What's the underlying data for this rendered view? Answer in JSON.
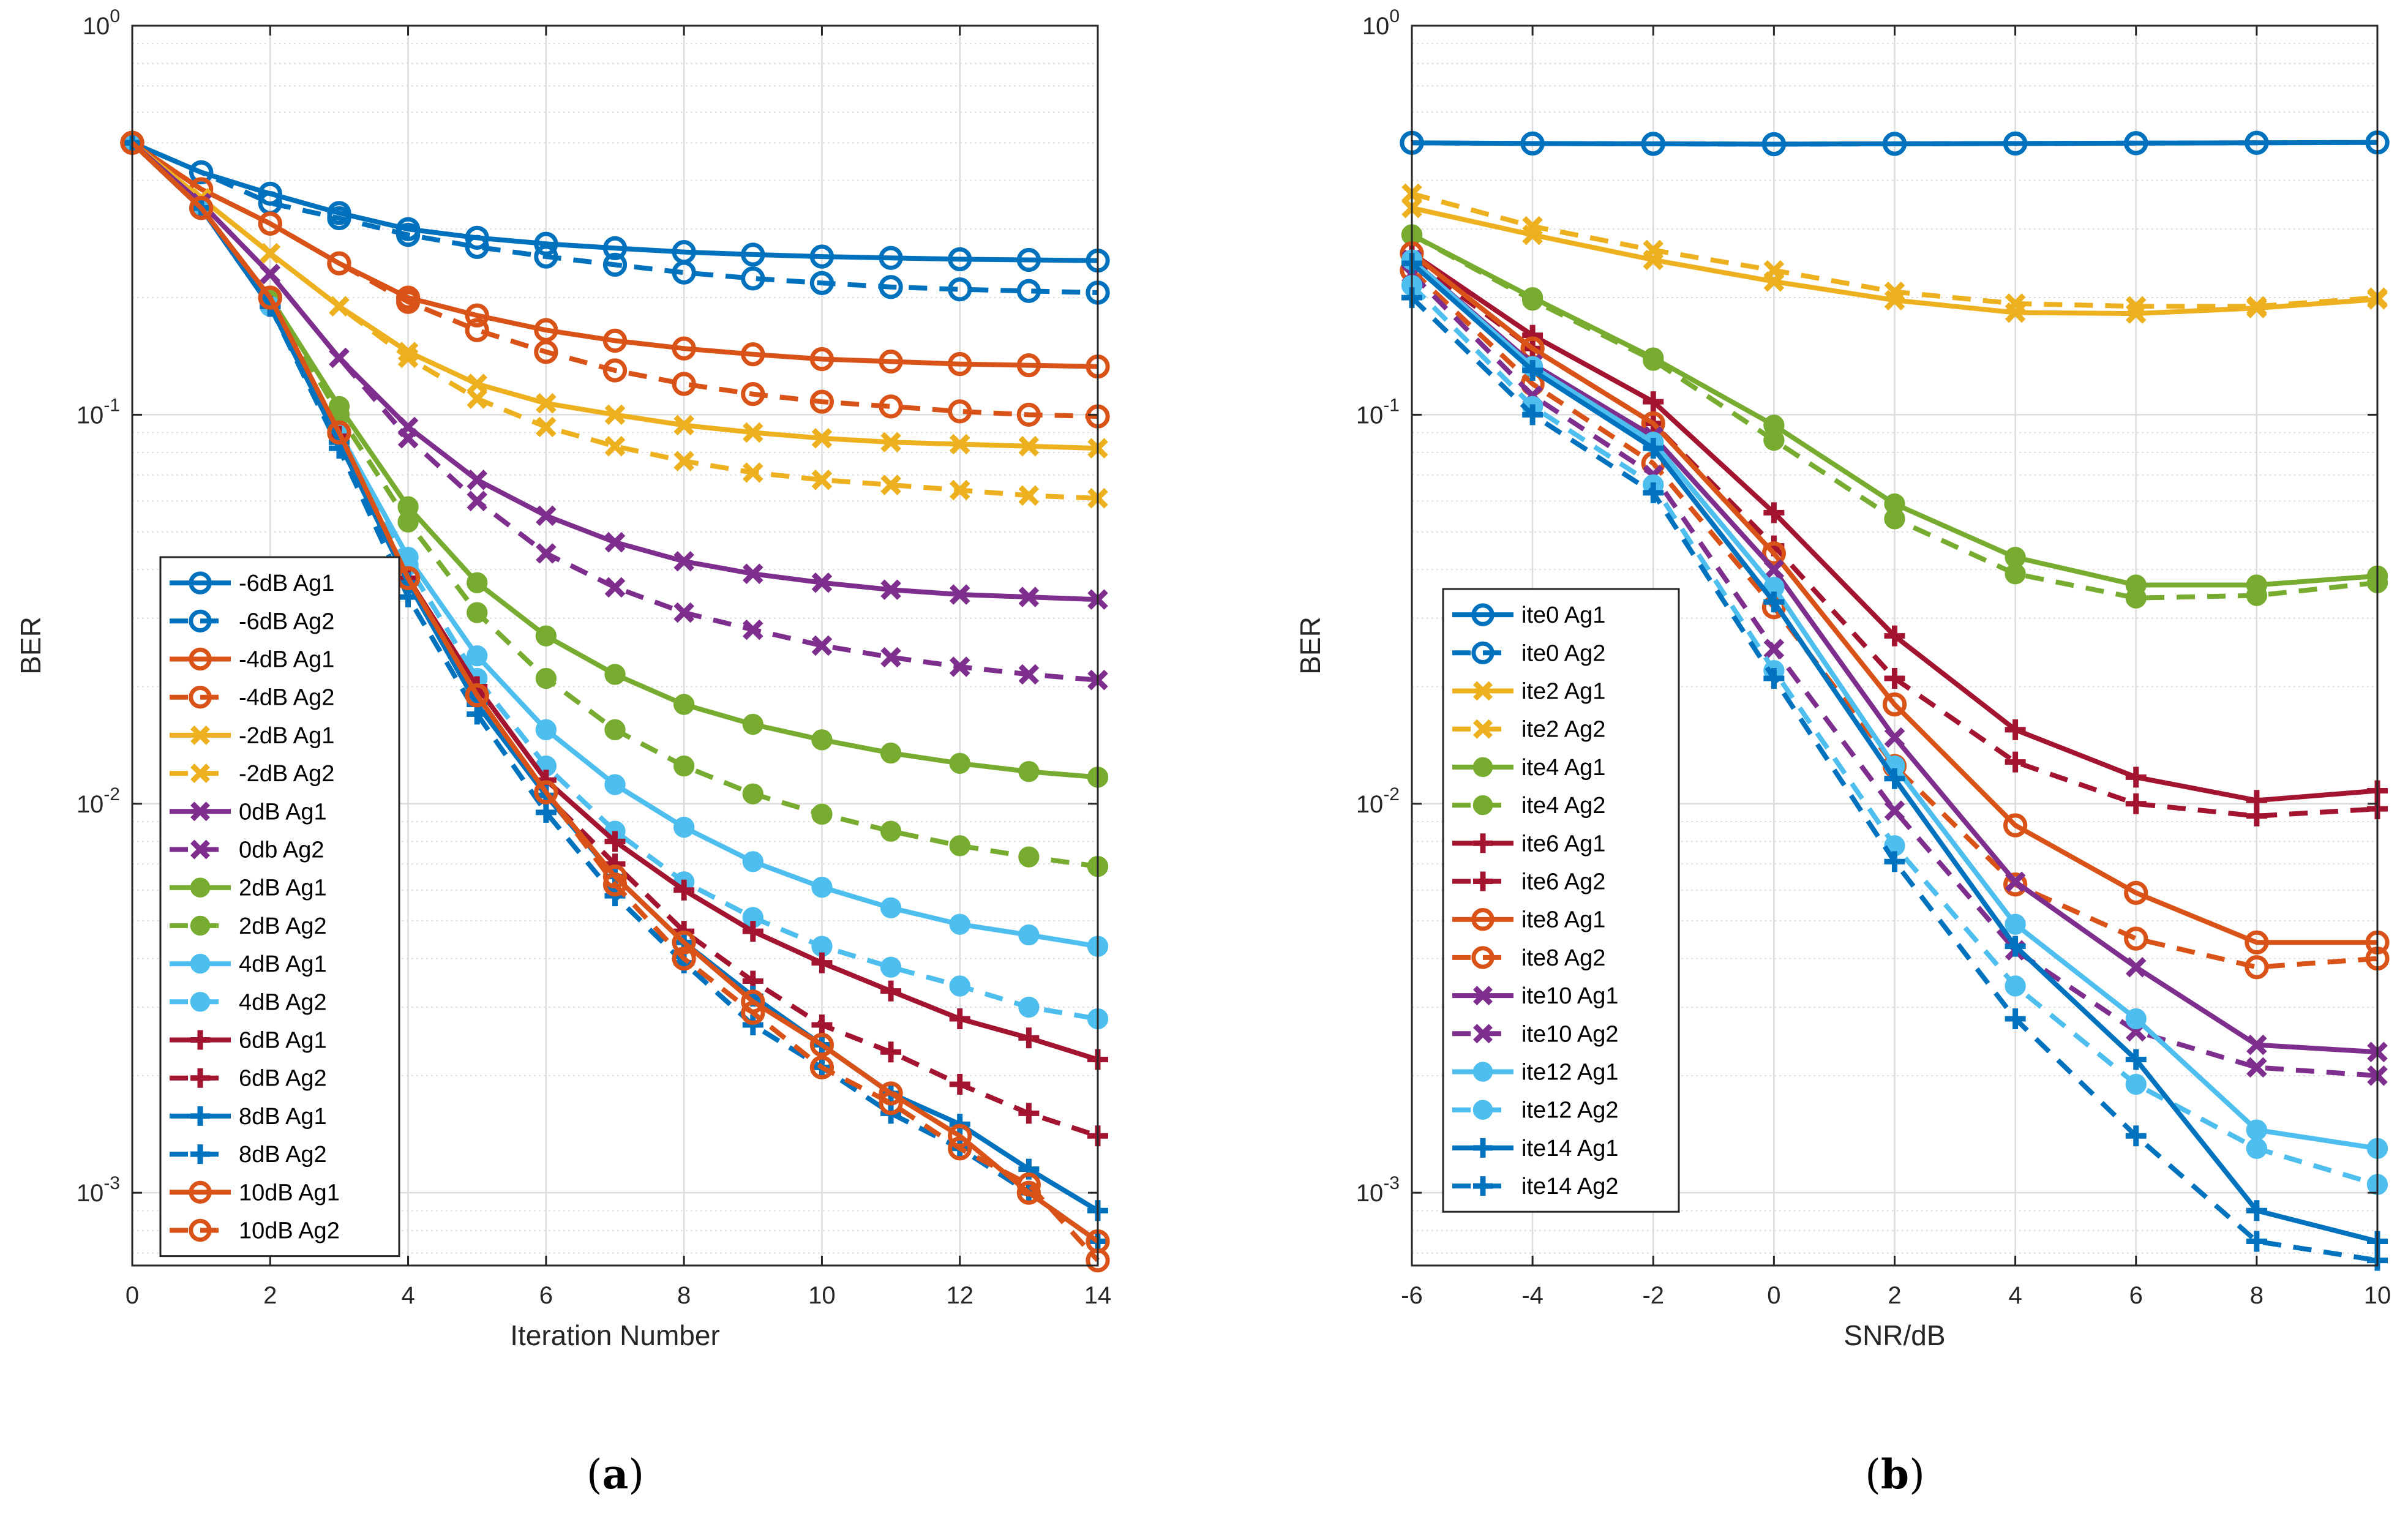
{
  "markers": {
    "0072BD": "o",
    "D95319": "o",
    "EDB120": "x",
    "7E2F8E": "x",
    "77AC30": "dot",
    "4DBEEE": "dot",
    "A2142F": "plus",
    "0072BE": "plus"
  },
  "chart_data": [
    {
      "type": "line",
      "caption": "(a)",
      "caption_letter": "a",
      "xlabel": "Iteration Number",
      "ylabel": "BER",
      "xlim": [
        0,
        14
      ],
      "ylim": [
        0.00065,
        1
      ],
      "yscale": "log",
      "grid": true,
      "minor_grid": true,
      "legend_position": "lower-left",
      "x_ticks": [
        0,
        2,
        4,
        6,
        8,
        10,
        12,
        14
      ],
      "y_ticks": [
        {
          "value": 1,
          "base": "10",
          "exp": "0"
        },
        {
          "value": 0.1,
          "base": "10",
          "exp": "-1"
        },
        {
          "value": 0.01,
          "base": "10",
          "exp": "-2"
        },
        {
          "value": 0.001,
          "base": "10",
          "exp": "-3"
        }
      ],
      "x": [
        0,
        1,
        2,
        3,
        4,
        5,
        6,
        7,
        8,
        9,
        10,
        11,
        12,
        13,
        14
      ],
      "series": [
        {
          "name": "-6dB Ag1",
          "color": "#0072BD",
          "dash": false,
          "marker": "o",
          "values": [
            0.5,
            0.42,
            0.37,
            0.33,
            0.3,
            0.285,
            0.275,
            0.268,
            0.262,
            0.258,
            0.255,
            0.253,
            0.251,
            0.25,
            0.249
          ]
        },
        {
          "name": "-6dB Ag2",
          "color": "#0072BD",
          "dash": true,
          "marker": "o",
          "values": [
            0.5,
            0.42,
            0.35,
            0.32,
            0.29,
            0.27,
            0.255,
            0.243,
            0.232,
            0.224,
            0.218,
            0.213,
            0.21,
            0.208,
            0.206
          ]
        },
        {
          "name": "-4dB Ag1",
          "color": "#D95319",
          "dash": false,
          "marker": "o",
          "values": [
            0.5,
            0.38,
            0.31,
            0.245,
            0.2,
            0.18,
            0.165,
            0.155,
            0.148,
            0.143,
            0.139,
            0.137,
            0.135,
            0.134,
            0.133
          ]
        },
        {
          "name": "-4dB Ag2",
          "color": "#D95319",
          "dash": true,
          "marker": "o",
          "values": [
            0.5,
            0.38,
            0.31,
            0.245,
            0.195,
            0.165,
            0.145,
            0.13,
            0.12,
            0.113,
            0.108,
            0.105,
            0.102,
            0.1,
            0.099
          ]
        },
        {
          "name": "-2dB Ag1",
          "color": "#EDB120",
          "dash": false,
          "marker": "x",
          "values": [
            0.5,
            0.36,
            0.26,
            0.19,
            0.145,
            0.12,
            0.107,
            0.1,
            0.094,
            0.09,
            0.087,
            0.085,
            0.084,
            0.083,
            0.082
          ]
        },
        {
          "name": "-2dB Ag2",
          "color": "#EDB120",
          "dash": true,
          "marker": "x",
          "values": [
            0.5,
            0.36,
            0.26,
            0.19,
            0.14,
            0.11,
            0.093,
            0.083,
            0.076,
            0.071,
            0.068,
            0.066,
            0.064,
            0.062,
            0.061
          ]
        },
        {
          "name": "0dB Ag1",
          "color": "#7E2F8E",
          "dash": false,
          "marker": "x",
          "values": [
            0.5,
            0.35,
            0.23,
            0.14,
            0.093,
            0.068,
            0.055,
            0.047,
            0.042,
            0.039,
            0.037,
            0.0355,
            0.0345,
            0.034,
            0.0335
          ]
        },
        {
          "name": "0db Ag2",
          "color": "#7E2F8E",
          "dash": true,
          "marker": "x",
          "values": [
            0.5,
            0.35,
            0.23,
            0.14,
            0.087,
            0.06,
            0.044,
            0.036,
            0.031,
            0.028,
            0.0255,
            0.0238,
            0.0225,
            0.0215,
            0.0208
          ]
        },
        {
          "name": "2dB Ag1",
          "color": "#77AC30",
          "dash": false,
          "marker": "dot",
          "values": [
            0.5,
            0.34,
            0.2,
            0.105,
            0.058,
            0.037,
            0.027,
            0.0215,
            0.018,
            0.016,
            0.0146,
            0.0135,
            0.0127,
            0.0121,
            0.0117
          ]
        },
        {
          "name": "2dB Ag2",
          "color": "#77AC30",
          "dash": true,
          "marker": "dot",
          "values": [
            0.5,
            0.34,
            0.2,
            0.1,
            0.053,
            0.031,
            0.021,
            0.0155,
            0.0125,
            0.0106,
            0.0094,
            0.0085,
            0.0078,
            0.0073,
            0.0069
          ]
        },
        {
          "name": "4dB Ag1",
          "color": "#4DBEEE",
          "dash": false,
          "marker": "dot",
          "values": [
            0.5,
            0.34,
            0.19,
            0.09,
            0.043,
            0.024,
            0.0155,
            0.0112,
            0.0087,
            0.0071,
            0.0061,
            0.0054,
            0.0049,
            0.0046,
            0.0043
          ]
        },
        {
          "name": "4dB Ag2",
          "color": "#4DBEEE",
          "dash": true,
          "marker": "dot",
          "values": [
            0.5,
            0.34,
            0.19,
            0.09,
            0.041,
            0.021,
            0.0125,
            0.0085,
            0.0063,
            0.0051,
            0.0043,
            0.0038,
            0.0034,
            0.003,
            0.0028
          ]
        },
        {
          "name": "6dB Ag1",
          "color": "#A2142F",
          "dash": false,
          "marker": "plus",
          "values": [
            0.5,
            0.34,
            0.19,
            0.088,
            0.038,
            0.02,
            0.0115,
            0.008,
            0.006,
            0.0047,
            0.0039,
            0.0033,
            0.0028,
            0.0025,
            0.0022
          ]
        },
        {
          "name": "6dB Ag2",
          "color": "#A2142F",
          "dash": true,
          "marker": "plus",
          "values": [
            0.5,
            0.34,
            0.19,
            0.088,
            0.037,
            0.019,
            0.0105,
            0.007,
            0.0047,
            0.0035,
            0.0027,
            0.0023,
            0.0019,
            0.0016,
            0.0014
          ]
        },
        {
          "name": "8dB Ag1",
          "color": "#0072BE",
          "dash": false,
          "marker": "plus",
          "values": [
            0.5,
            0.34,
            0.19,
            0.085,
            0.037,
            0.018,
            0.0105,
            0.0065,
            0.0044,
            0.0032,
            0.0024,
            0.0018,
            0.0015,
            0.00115,
            0.0009
          ]
        },
        {
          "name": "8dB Ag2",
          "color": "#0072BE",
          "dash": true,
          "marker": "plus",
          "values": [
            0.5,
            0.34,
            0.19,
            0.082,
            0.034,
            0.017,
            0.0095,
            0.0058,
            0.0039,
            0.0027,
            0.0021,
            0.0016,
            0.0013,
            0.001,
            0.00075
          ]
        },
        {
          "name": "10dB Ag1",
          "color": "#D95319",
          "dash": false,
          "marker": "o",
          "values": [
            0.5,
            0.34,
            0.2,
            0.09,
            0.038,
            0.019,
            0.0107,
            0.0065,
            0.0044,
            0.0031,
            0.0024,
            0.0018,
            0.0014,
            0.001,
            0.00075
          ]
        },
        {
          "name": "10dB Ag2",
          "color": "#D95319",
          "dash": true,
          "marker": "o",
          "values": [
            0.5,
            0.34,
            0.2,
            0.09,
            0.038,
            0.019,
            0.0107,
            0.0062,
            0.004,
            0.0029,
            0.0021,
            0.0017,
            0.0013,
            0.00105,
            0.00067
          ]
        }
      ]
    },
    {
      "type": "line",
      "caption": "(b)",
      "caption_letter": "b",
      "xlabel": "SNR/dB",
      "ylabel": "BER",
      "xlim": [
        -6,
        10
      ],
      "ylim": [
        0.00065,
        1
      ],
      "yscale": "log",
      "grid": true,
      "minor_grid": true,
      "legend_position": "lower-left",
      "x_ticks": [
        -6,
        -4,
        -2,
        0,
        2,
        4,
        6,
        8,
        10
      ],
      "y_ticks": [
        {
          "value": 1,
          "base": "10",
          "exp": "0"
        },
        {
          "value": 0.1,
          "base": "10",
          "exp": "-1"
        },
        {
          "value": 0.01,
          "base": "10",
          "exp": "-2"
        },
        {
          "value": 0.001,
          "base": "10",
          "exp": "-3"
        }
      ],
      "x": [
        -6,
        -4,
        -2,
        0,
        2,
        4,
        6,
        8,
        10
      ],
      "series": [
        {
          "name": "ite0 Ag1",
          "color": "#0072BD",
          "dash": false,
          "marker": "o",
          "values": [
            0.5,
            0.498,
            0.497,
            0.496,
            0.497,
            0.498,
            0.499,
            0.5,
            0.501
          ]
        },
        {
          "name": "ite0 Ag2",
          "color": "#0072BD",
          "dash": true,
          "marker": "o",
          "values": [
            0.5,
            0.498,
            0.497,
            0.496,
            0.497,
            0.498,
            0.499,
            0.5,
            0.501
          ]
        },
        {
          "name": "ite2 Ag1",
          "color": "#EDB120",
          "dash": false,
          "marker": "x",
          "values": [
            0.34,
            0.29,
            0.25,
            0.22,
            0.197,
            0.183,
            0.182,
            0.188,
            0.198
          ]
        },
        {
          "name": "ite2 Ag2",
          "color": "#EDB120",
          "dash": true,
          "marker": "x",
          "values": [
            0.37,
            0.305,
            0.265,
            0.235,
            0.207,
            0.193,
            0.19,
            0.19,
            0.2
          ]
        },
        {
          "name": "ite4 Ag1",
          "color": "#77AC30",
          "dash": false,
          "marker": "dot",
          "values": [
            0.29,
            0.2,
            0.14,
            0.094,
            0.059,
            0.043,
            0.0365,
            0.0365,
            0.0385
          ]
        },
        {
          "name": "ite4 Ag2",
          "color": "#77AC30",
          "dash": true,
          "marker": "dot",
          "values": [
            0.29,
            0.197,
            0.138,
            0.086,
            0.054,
            0.039,
            0.0338,
            0.0343,
            0.037
          ]
        },
        {
          "name": "ite6 Ag1",
          "color": "#A2142F",
          "dash": false,
          "marker": "plus",
          "values": [
            0.26,
            0.16,
            0.108,
            0.056,
            0.027,
            0.0155,
            0.0117,
            0.0102,
            0.0108
          ]
        },
        {
          "name": "ite6 Ag2",
          "color": "#A2142F",
          "dash": true,
          "marker": "plus",
          "values": [
            0.25,
            0.148,
            0.095,
            0.046,
            0.021,
            0.0128,
            0.01,
            0.0093,
            0.0097
          ]
        },
        {
          "name": "ite8 Ag1",
          "color": "#D95319",
          "dash": false,
          "marker": "o",
          "values": [
            0.26,
            0.148,
            0.095,
            0.044,
            0.018,
            0.0088,
            0.0059,
            0.0044,
            0.0044
          ]
        },
        {
          "name": "ite8 Ag2",
          "color": "#D95319",
          "dash": true,
          "marker": "o",
          "values": [
            0.235,
            0.12,
            0.075,
            0.032,
            0.0125,
            0.0062,
            0.0045,
            0.0038,
            0.004
          ]
        },
        {
          "name": "ite10 Ag1",
          "color": "#7E2F8E",
          "dash": false,
          "marker": "x",
          "values": [
            0.25,
            0.135,
            0.088,
            0.04,
            0.0148,
            0.0063,
            0.0038,
            0.0024,
            0.0023
          ]
        },
        {
          "name": "ite10 Ag2",
          "color": "#7E2F8E",
          "dash": true,
          "marker": "x",
          "values": [
            0.23,
            0.112,
            0.07,
            0.025,
            0.0096,
            0.0042,
            0.0026,
            0.0021,
            0.002
          ]
        },
        {
          "name": "ite12 Ag1",
          "color": "#4DBEEE",
          "dash": false,
          "marker": "dot",
          "values": [
            0.25,
            0.133,
            0.085,
            0.036,
            0.0125,
            0.0049,
            0.0028,
            0.00145,
            0.0013
          ]
        },
        {
          "name": "ite12 Ag2",
          "color": "#4DBEEE",
          "dash": true,
          "marker": "dot",
          "values": [
            0.215,
            0.105,
            0.066,
            0.022,
            0.0078,
            0.0034,
            0.0019,
            0.0013,
            0.00105
          ]
        },
        {
          "name": "ite14 Ag1",
          "color": "#0072BE",
          "dash": false,
          "marker": "plus",
          "values": [
            0.245,
            0.13,
            0.082,
            0.033,
            0.0116,
            0.0043,
            0.0022,
            0.0009,
            0.00075
          ]
        },
        {
          "name": "ite14 Ag2",
          "color": "#0072BE",
          "dash": true,
          "marker": "plus",
          "values": [
            0.2,
            0.1,
            0.063,
            0.021,
            0.0071,
            0.0028,
            0.0014,
            0.00075,
            0.00067
          ]
        }
      ]
    }
  ]
}
